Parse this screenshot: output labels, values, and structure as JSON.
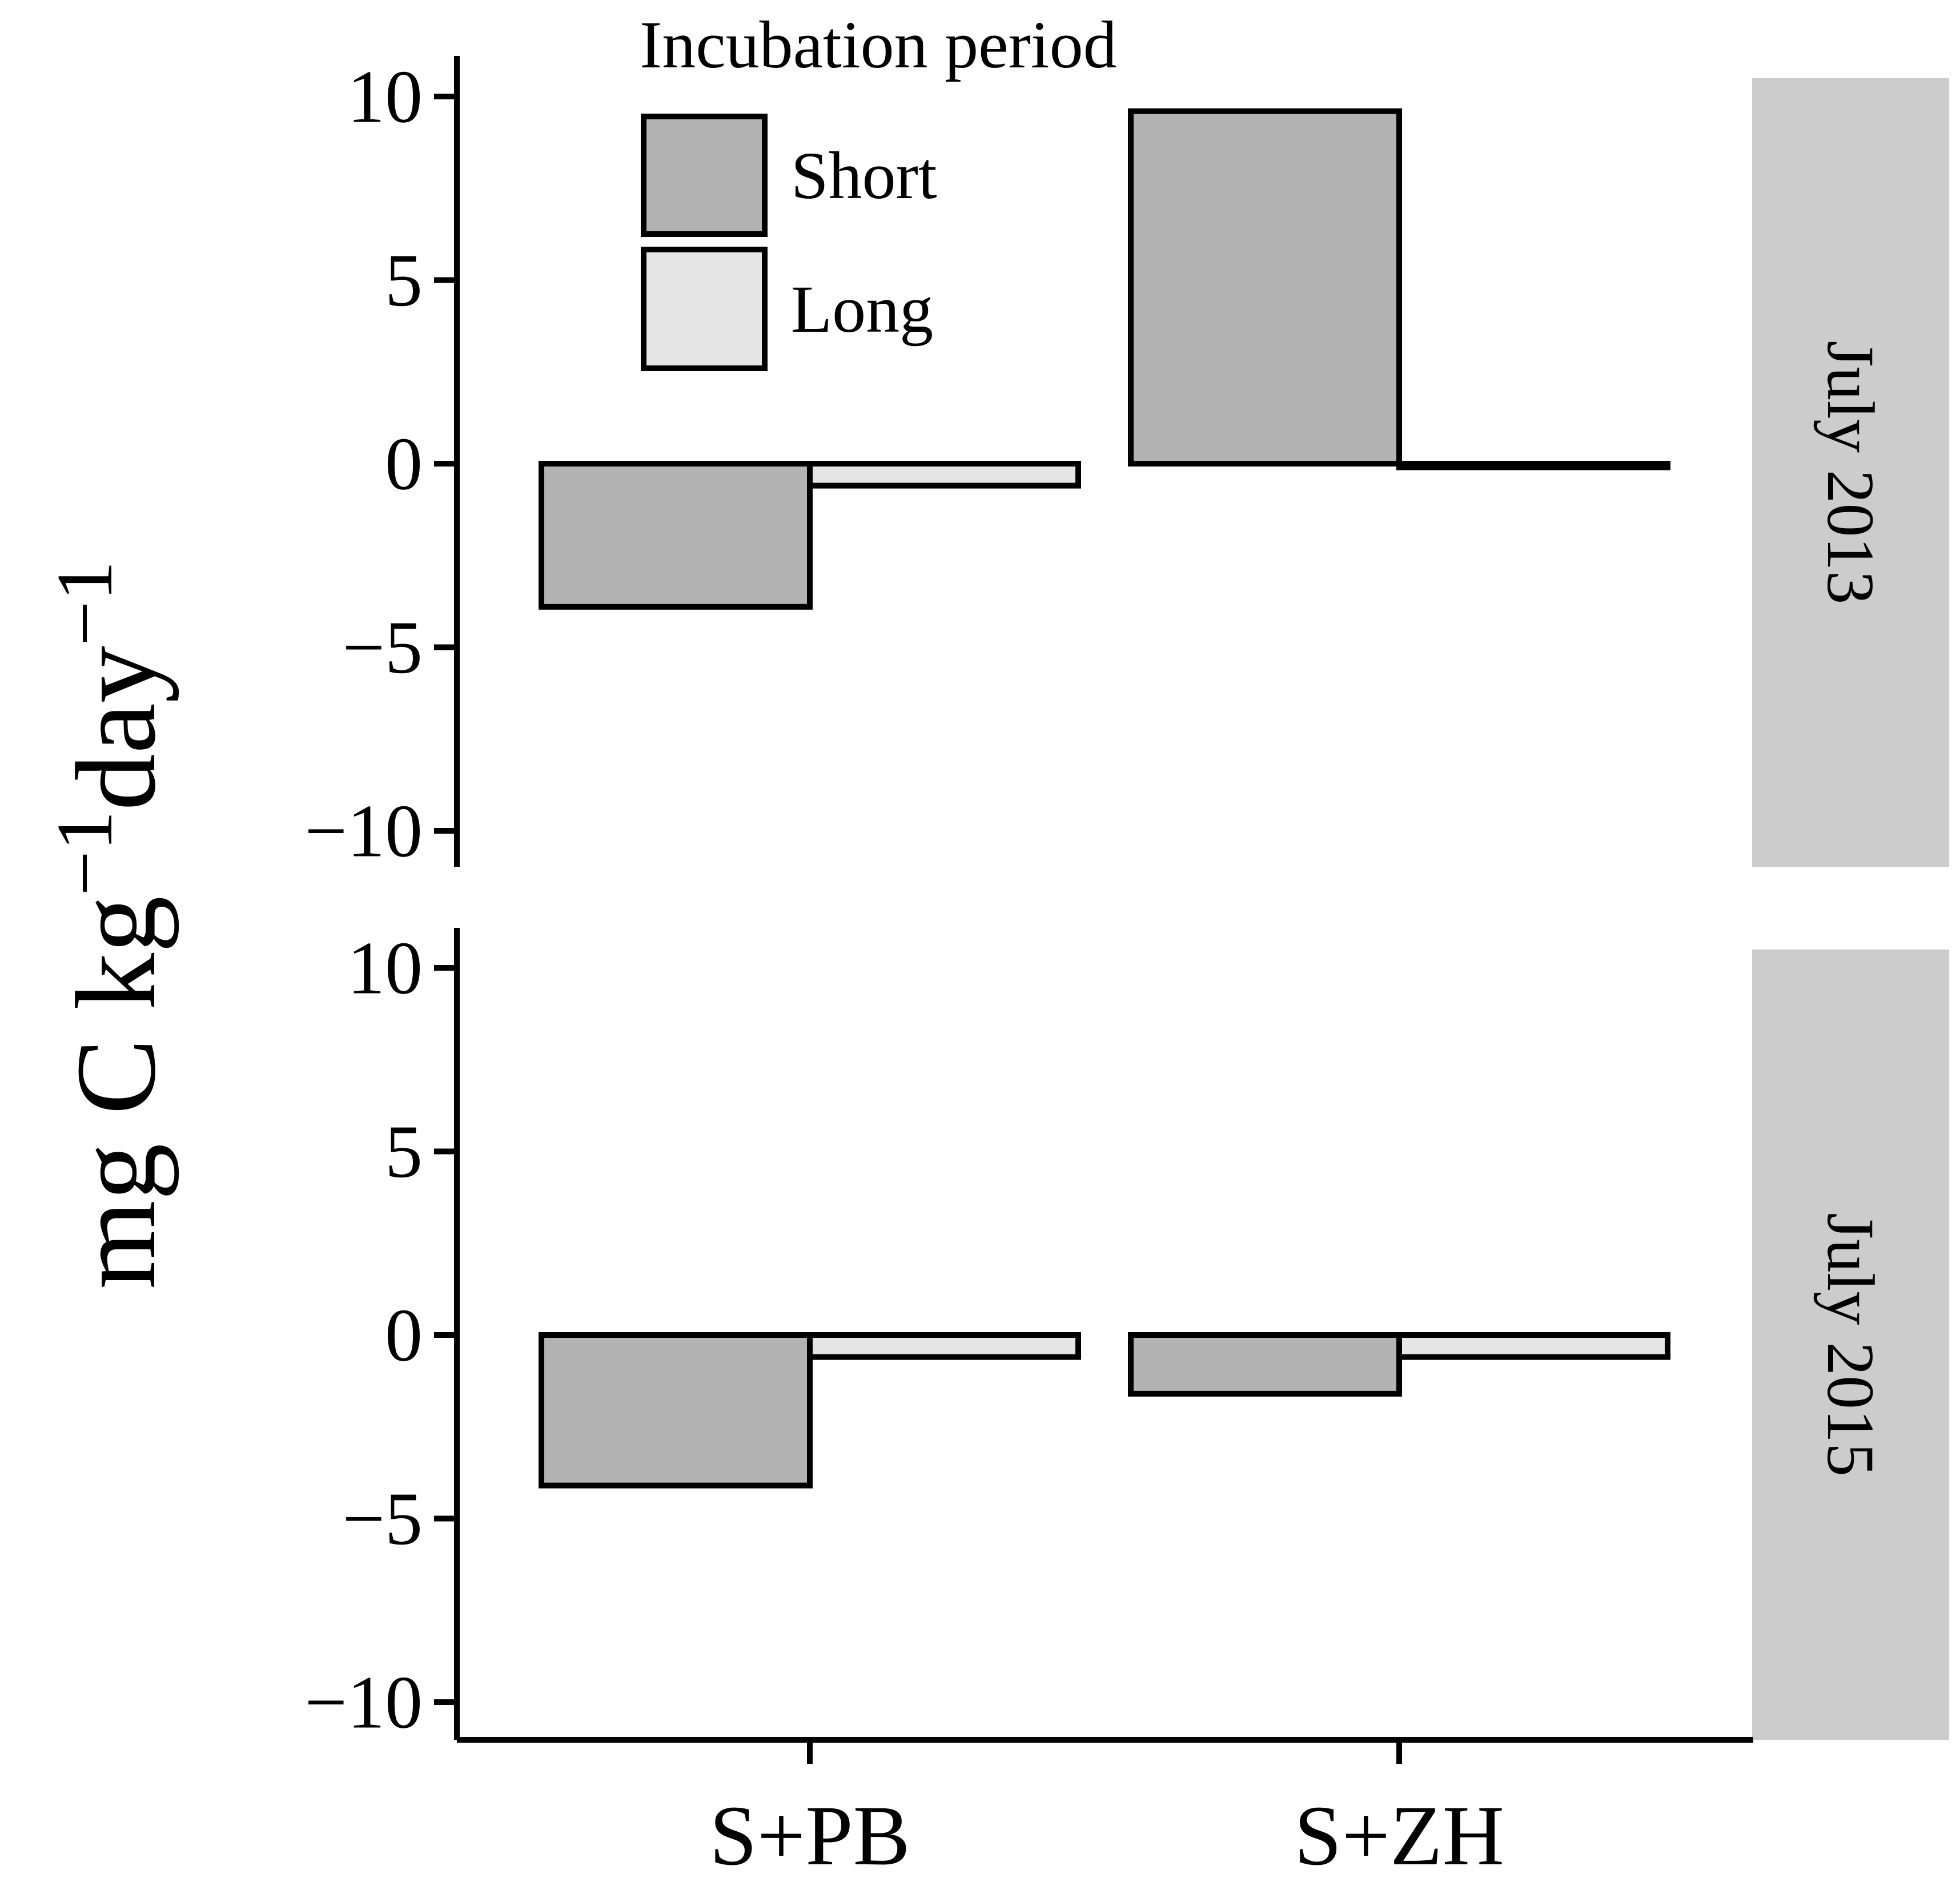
{
  "chart_data": {
    "type": "bar",
    "ylabel": "mg C kg⁻¹day⁻¹",
    "ylabel_parts": {
      "base_1": "mg C kg",
      "sup_1": "−1",
      "base_2": "day",
      "sup_2": "−1"
    },
    "categories": [
      "S+PB",
      "S+ZH"
    ],
    "ylim": [
      -11,
      10.5
    ],
    "yticks": [
      -10,
      -5,
      0,
      5,
      10
    ],
    "ytick_labels": [
      "−10",
      "−5",
      "0",
      "5",
      "10"
    ],
    "legend": {
      "title": "Incubation period",
      "entries": [
        "Short",
        "Long"
      ],
      "position": "top-left"
    },
    "colors": {
      "Short": "#b3b3b3",
      "Long": "#e5e5e5",
      "strip": "#cccccc",
      "stroke": "#000000"
    },
    "panels": [
      {
        "strip_label": "July 2013",
        "series": [
          {
            "name": "Short",
            "values": [
              -3.9,
              9.6
            ]
          },
          {
            "name": "Long",
            "values": [
              -0.6,
              -0.1
            ]
          }
        ]
      },
      {
        "strip_label": "July 2015",
        "series": [
          {
            "name": "Short",
            "values": [
              -4.1,
              -1.6
            ]
          },
          {
            "name": "Long",
            "values": [
              -0.6,
              -0.6
            ]
          }
        ]
      }
    ]
  }
}
